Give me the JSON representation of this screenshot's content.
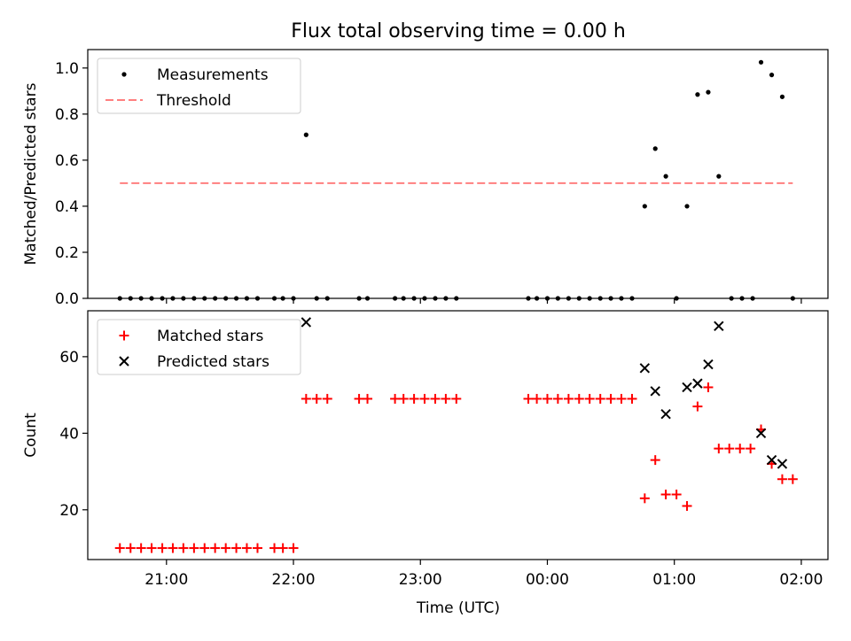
{
  "figure": {
    "title": "Flux total observing time = 0.00 h",
    "xlabel": "Time (UTC)"
  },
  "chart_data": [
    {
      "type": "scatter",
      "panel": "top",
      "ylabel": "Matched/Predicted stars",
      "xlim": [
        20.38,
        26.21
      ],
      "ylim": [
        0.0,
        1.08
      ],
      "yticks": [
        0.0,
        0.2,
        0.4,
        0.6,
        0.8,
        1.0
      ],
      "ytick_labels": [
        "0.0",
        "0.2",
        "0.4",
        "0.6",
        "0.8",
        "1.0"
      ],
      "grid": false,
      "legend_position": "upper-left",
      "threshold": {
        "name": "Threshold",
        "y": 0.5,
        "x_range": [
          20.633,
          25.933
        ],
        "color": "#ff7f7f",
        "style": "dashed"
      },
      "series": [
        {
          "name": "Measurements",
          "color": "#000000",
          "marker": "dot",
          "x": [
            20.633,
            20.717,
            20.8,
            20.883,
            20.967,
            21.05,
            21.133,
            21.217,
            21.3,
            21.383,
            21.467,
            21.55,
            21.633,
            21.717,
            21.85,
            21.917,
            22.0,
            22.1,
            22.183,
            22.267,
            22.517,
            22.583,
            22.8,
            22.867,
            22.95,
            23.033,
            23.117,
            23.2,
            23.283,
            23.85,
            23.917,
            24.0,
            24.083,
            24.167,
            24.25,
            24.333,
            24.417,
            24.5,
            24.583,
            24.667,
            24.767,
            24.85,
            24.933,
            25.017,
            25.1,
            25.183,
            25.267,
            25.35,
            25.45,
            25.533,
            25.617,
            25.683,
            25.767,
            25.85,
            25.933
          ],
          "y": [
            0,
            0,
            0,
            0,
            0,
            0,
            0,
            0,
            0,
            0,
            0,
            0,
            0,
            0,
            0,
            0,
            0,
            0.71,
            0,
            0,
            0,
            0,
            0,
            0,
            0,
            0,
            0,
            0,
            0,
            0,
            0,
            0,
            0,
            0,
            0,
            0,
            0,
            0,
            0,
            0,
            0.4,
            0.65,
            0.53,
            0,
            0.4,
            0.885,
            0.895,
            0.53,
            0,
            0,
            0,
            1.025,
            0.97,
            0.875,
            0
          ]
        }
      ]
    },
    {
      "type": "scatter",
      "panel": "bottom",
      "ylabel": "Count",
      "xlim": [
        20.38,
        26.21
      ],
      "ylim": [
        7,
        72
      ],
      "xticks": [
        21,
        22,
        23,
        24,
        25,
        26
      ],
      "xtick_labels": [
        "21:00",
        "22:00",
        "23:00",
        "00:00",
        "01:00",
        "02:00"
      ],
      "yticks": [
        20,
        40,
        60
      ],
      "ytick_labels": [
        "20",
        "40",
        "60"
      ],
      "grid": false,
      "legend_position": "upper-left",
      "series": [
        {
          "name": "Matched stars",
          "color": "#ff0000",
          "marker": "plus",
          "x": [
            20.633,
            20.717,
            20.8,
            20.883,
            20.967,
            21.05,
            21.133,
            21.217,
            21.3,
            21.383,
            21.467,
            21.55,
            21.633,
            21.717,
            21.85,
            21.917,
            22.0,
            22.1,
            22.183,
            22.267,
            22.517,
            22.583,
            22.8,
            22.867,
            22.95,
            23.033,
            23.117,
            23.2,
            23.283,
            23.85,
            23.917,
            24.0,
            24.083,
            24.167,
            24.25,
            24.333,
            24.417,
            24.5,
            24.583,
            24.667,
            24.767,
            24.85,
            24.933,
            25.017,
            25.1,
            25.183,
            25.267,
            25.35,
            25.433,
            25.517,
            25.6,
            25.683,
            25.767,
            25.85,
            25.933
          ],
          "y": [
            10,
            10,
            10,
            10,
            10,
            10,
            10,
            10,
            10,
            10,
            10,
            10,
            10,
            10,
            10,
            10,
            10,
            49,
            49,
            49,
            49,
            49,
            49,
            49,
            49,
            49,
            49,
            49,
            49,
            49,
            49,
            49,
            49,
            49,
            49,
            49,
            49,
            49,
            49,
            49,
            23,
            33,
            24,
            24,
            21,
            47,
            52,
            36,
            36,
            36,
            36,
            41,
            32,
            28,
            28
          ]
        },
        {
          "name": "Predicted stars",
          "color": "#000000",
          "marker": "x",
          "x": [
            22.1,
            24.767,
            24.85,
            24.933,
            25.1,
            25.183,
            25.267,
            25.35,
            25.683,
            25.767,
            25.85
          ],
          "y": [
            69,
            57,
            51,
            45,
            52,
            53,
            58,
            68,
            40,
            33,
            32
          ]
        }
      ]
    }
  ]
}
